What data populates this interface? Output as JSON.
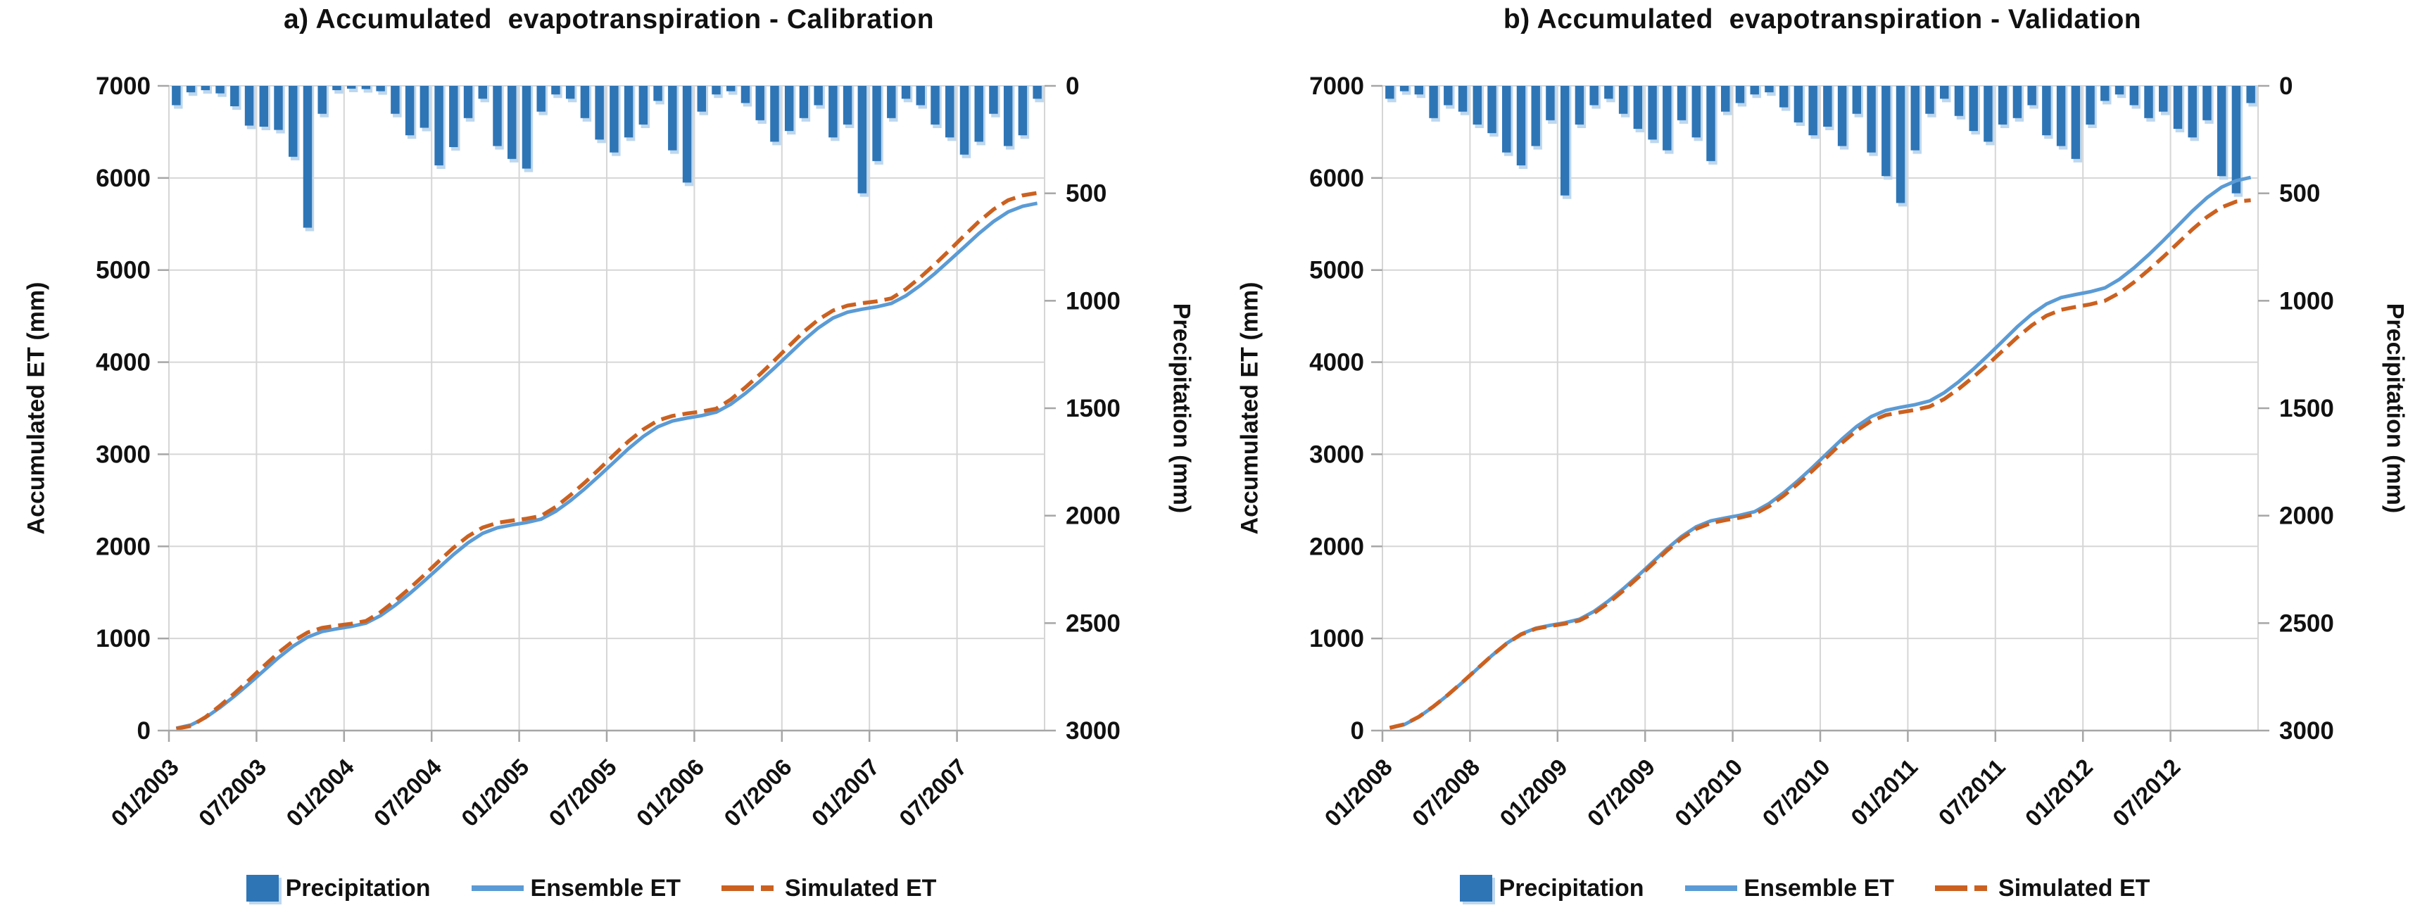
{
  "figure": {
    "background": "#FFFFFF"
  },
  "colors": {
    "precipitation_bar": "#2E75B6",
    "precipitation_halo": "#BDD7EE",
    "ensemble_line": "#5B9BD5",
    "simulated_line": "#CB6120",
    "gridline": "#D6D6D6",
    "axis_line": "#A6A6A6",
    "text": "#111111"
  },
  "chart_data": [
    {
      "panel_label": "a",
      "title": "a) Accumulated  evapotranspiration - Calibration",
      "type": "combo",
      "grid": true,
      "legend_position": "bottom",
      "x": {
        "n_points": 60,
        "tick_every_months": 6,
        "tick_labels": [
          "01/2003",
          "07/2003",
          "01/2004",
          "07/2004",
          "01/2005",
          "07/2005",
          "01/2006",
          "07/2006",
          "01/2007",
          "07/2007"
        ]
      },
      "y_left": {
        "label": "Accumulated ET (mm)",
        "min": 0,
        "max": 7000,
        "step": 1000
      },
      "y_right": {
        "label": "Precipitation (mm)",
        "min": 0,
        "max": 3000,
        "step": 500,
        "inverted": true
      },
      "series": [
        {
          "name": "Precipitation",
          "type": "bar",
          "axis": "right",
          "color": "#2E75B6",
          "values": [
            90,
            30,
            20,
            35,
            95,
            185,
            190,
            205,
            330,
            660,
            130,
            20,
            12,
            15,
            25,
            130,
            230,
            195,
            370,
            285,
            150,
            60,
            280,
            340,
            385,
            120,
            40,
            60,
            150,
            250,
            310,
            240,
            180,
            70,
            300,
            450,
            120,
            40,
            25,
            80,
            160,
            260,
            210,
            150,
            90,
            240,
            180,
            500,
            350,
            150,
            60,
            90,
            180,
            240,
            320,
            260,
            130,
            280,
            230,
            60
          ]
        },
        {
          "name": "Ensemble ET",
          "type": "line",
          "axis": "left",
          "color": "#5B9BD5",
          "values": [
            25,
            60,
            140,
            250,
            375,
            510,
            650,
            790,
            915,
            1015,
            1075,
            1105,
            1131,
            1166,
            1248,
            1360,
            1488,
            1625,
            1768,
            1911,
            2039,
            2141,
            2202,
            2233,
            2259,
            2296,
            2380,
            2495,
            2626,
            2768,
            2915,
            3062,
            3193,
            3298,
            3361,
            3393,
            3420,
            3457,
            3543,
            3661,
            3794,
            3939,
            4089,
            4238,
            4372,
            4479,
            4543,
            4575,
            4601,
            4638,
            4721,
            4835,
            4965,
            5106,
            5251,
            5397,
            5527,
            5631,
            5693,
            5725
          ]
        },
        {
          "name": "Simulated ET",
          "type": "line",
          "dash": true,
          "axis": "left",
          "color": "#CB6120",
          "values": [
            20,
            50,
            145,
            270,
            405,
            550,
            700,
            845,
            970,
            1065,
            1115,
            1140,
            1160,
            1190,
            1285,
            1410,
            1545,
            1690,
            1840,
            1985,
            2110,
            2205,
            2255,
            2280,
            2300,
            2331,
            2428,
            2555,
            2693,
            2841,
            2994,
            3142,
            3269,
            3366,
            3417,
            3443,
            3464,
            3495,
            3595,
            3726,
            3868,
            4020,
            4178,
            4330,
            4461,
            4561,
            4614,
            4640,
            4661,
            4692,
            4792,
            4923,
            5065,
            5217,
            5375,
            5527,
            5658,
            5758,
            5811,
            5837
          ]
        }
      ]
    },
    {
      "panel_label": "b",
      "title": "b) Accumulated  evapotranspiration - Validation",
      "type": "combo",
      "grid": true,
      "legend_position": "bottom",
      "x": {
        "n_points": 60,
        "tick_every_months": 6,
        "tick_labels": [
          "01/2008",
          "07/2008",
          "01/2009",
          "07/2009",
          "01/2010",
          "07/2010",
          "01/2011",
          "07/2011",
          "01/2012",
          "07/2012"
        ]
      },
      "y_left": {
        "label": "Accumulated ET (mm)",
        "min": 0,
        "max": 7000,
        "step": 1000
      },
      "y_right": {
        "label": "Precipitation (mm)",
        "min": 0,
        "max": 3000,
        "step": 500,
        "inverted": true
      },
      "series": [
        {
          "name": "Precipitation",
          "type": "bar",
          "axis": "right",
          "color": "#2E75B6",
          "values": [
            60,
            25,
            40,
            150,
            90,
            120,
            180,
            220,
            310,
            370,
            280,
            160,
            510,
            180,
            90,
            60,
            130,
            200,
            250,
            300,
            160,
            240,
            350,
            120,
            80,
            40,
            30,
            100,
            170,
            230,
            190,
            280,
            130,
            310,
            420,
            545,
            300,
            130,
            60,
            140,
            210,
            260,
            180,
            150,
            90,
            230,
            280,
            340,
            180,
            70,
            40,
            90,
            150,
            120,
            200,
            240,
            160,
            420,
            500,
            80
          ]
        },
        {
          "name": "Ensemble ET",
          "type": "line",
          "axis": "left",
          "color": "#5B9BD5",
          "values": [
            27,
            65,
            148,
            261,
            388,
            525,
            670,
            815,
            945,
            1048,
            1111,
            1143,
            1171,
            1209,
            1294,
            1409,
            1539,
            1679,
            1827,
            1975,
            2107,
            2212,
            2277,
            2309,
            2338,
            2377,
            2465,
            2583,
            2717,
            2861,
            3014,
            3166,
            3302,
            3410,
            3477,
            3510,
            3539,
            3579,
            3669,
            3789,
            3926,
            4073,
            4228,
            4384,
            4522,
            4632,
            4701,
            4734,
            4765,
            4806,
            4899,
            5024,
            5166,
            5319,
            5480,
            5641,
            5785,
            5900,
            5971,
            6006
          ]
        },
        {
          "name": "Simulated ET",
          "type": "line",
          "dash": true,
          "axis": "left",
          "color": "#CB6120",
          "values": [
            30,
            68,
            150,
            262,
            390,
            528,
            672,
            815,
            943,
            1044,
            1105,
            1135,
            1160,
            1195,
            1275,
            1388,
            1518,
            1658,
            1806,
            1954,
            2086,
            2190,
            2253,
            2285,
            2312,
            2350,
            2436,
            2552,
            2684,
            2826,
            2976,
            3126,
            3258,
            3362,
            3426,
            3456,
            3482,
            3518,
            3600,
            3712,
            3840,
            3978,
            4124,
            4270,
            4400,
            4504,
            4568,
            4600,
            4628,
            4666,
            4752,
            4868,
            5000,
            5142,
            5292,
            5442,
            5576,
            5682,
            5744,
            5758
          ]
        }
      ]
    }
  ]
}
